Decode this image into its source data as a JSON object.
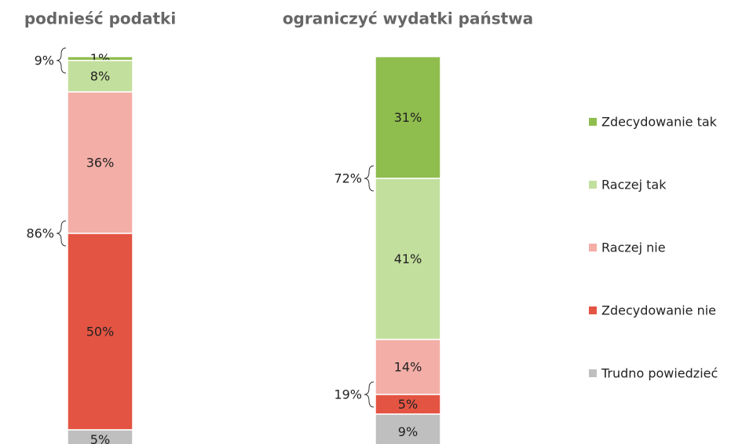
{
  "chart_data": {
    "type": "stacked_bar",
    "categories": [
      "podnieść podatki",
      "ograniczyć wydatki państwa"
    ],
    "ylim": [
      0,
      100
    ],
    "series": [
      {
        "name": "Zdecydowanie tak",
        "color": "#8fbd4e",
        "values": [
          1,
          31
        ],
        "value_labels": [
          "1%",
          "31%"
        ]
      },
      {
        "name": "Raczej tak",
        "color": "#c3df9d",
        "values": [
          8,
          41
        ],
        "value_labels": [
          "8%",
          "41%"
        ]
      },
      {
        "name": "Raczej nie",
        "color": "#f3aea7",
        "values": [
          36,
          14
        ],
        "value_labels": [
          "36%",
          "14%"
        ]
      },
      {
        "name": "Zdecydowanie nie",
        "color": "#e45443",
        "values": [
          50,
          5
        ],
        "value_labels": [
          "50%",
          "5%"
        ]
      },
      {
        "name": "Trudno powiedzieć",
        "color": "#bfbfbf",
        "values": [
          5,
          9
        ],
        "value_labels": [
          "5%",
          "9%"
        ]
      }
    ],
    "top_totals": {
      "values": [
        9,
        72
      ],
      "value_labels": [
        "9%",
        "72%"
      ]
    },
    "middle_totals": {
      "values": [
        86,
        19
      ],
      "value_labels": [
        "86%",
        "19%"
      ]
    }
  }
}
